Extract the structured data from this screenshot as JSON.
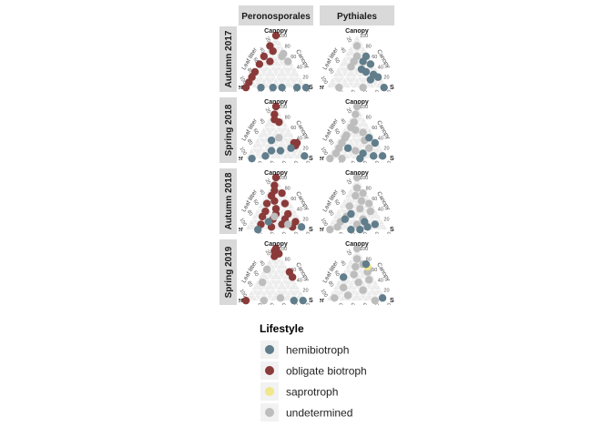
{
  "chart_data": {
    "type": "scatter",
    "subtype": "ternary",
    "facet_columns": [
      "Peronosporales",
      "Pythiales"
    ],
    "facet_rows": [
      "Autumn 2017",
      "Spring 2018",
      "Autumn 2018",
      "Spring 2019"
    ],
    "axes": {
      "top": "Canopy",
      "left": "Leaf litter",
      "right": "Soil",
      "left_side_label": "Leaf litter",
      "right_side_label": "Canopy",
      "bottom_label": "Soil",
      "ticks": [
        "20",
        "40",
        "60",
        "80",
        "100"
      ]
    },
    "grid": true,
    "legend": {
      "title": "Lifestyle",
      "position": "bottom",
      "entries": [
        {
          "label": "hemibiotroph",
          "color": "#607d8b"
        },
        {
          "label": "obligate biotroph",
          "color": "#8b3a3a"
        },
        {
          "label": "saprotroph",
          "color": "#f0e68c"
        },
        {
          "label": "undetermined",
          "color": "#bdbdbd"
        }
      ]
    },
    "panels": [
      {
        "row": "Autumn 2017",
        "col": "Peronosporales",
        "points": [
          {
            "c": 100,
            "l": 0,
            "s": 0,
            "k": "obligate biotroph"
          },
          {
            "c": 80,
            "l": 20,
            "s": 0,
            "k": "obligate biotroph"
          },
          {
            "c": 60,
            "l": 40,
            "s": 0,
            "k": "obligate biotroph"
          },
          {
            "c": 45,
            "l": 55,
            "s": 0,
            "k": "obligate biotroph"
          },
          {
            "c": 30,
            "l": 70,
            "s": 0,
            "k": "obligate biotroph"
          },
          {
            "c": 20,
            "l": 80,
            "s": 0,
            "k": "obligate biotroph"
          },
          {
            "c": 10,
            "l": 90,
            "s": 0,
            "k": "obligate biotroph"
          },
          {
            "c": 0,
            "l": 100,
            "s": 0,
            "k": "obligate biotroph"
          },
          {
            "c": 70,
            "l": 20,
            "s": 10,
            "k": "obligate biotroph"
          },
          {
            "c": 50,
            "l": 35,
            "s": 15,
            "k": "obligate biotroph"
          },
          {
            "c": 60,
            "l": 10,
            "s": 30,
            "k": "undetermined"
          },
          {
            "c": 65,
            "l": 5,
            "s": 30,
            "k": "undetermined"
          },
          {
            "c": 50,
            "l": 5,
            "s": 45,
            "k": "undetermined"
          },
          {
            "c": 0,
            "l": 75,
            "s": 25,
            "k": "hemibiotroph"
          },
          {
            "c": 0,
            "l": 55,
            "s": 45,
            "k": "hemibiotroph"
          },
          {
            "c": 0,
            "l": 40,
            "s": 60,
            "k": "hemibiotroph"
          },
          {
            "c": 0,
            "l": 15,
            "s": 85,
            "k": "hemibiotroph"
          },
          {
            "c": 0,
            "l": 0,
            "s": 100,
            "k": "hemibiotroph"
          }
        ]
      },
      {
        "row": "Autumn 2017",
        "col": "Pythiales",
        "points": [
          {
            "c": 80,
            "l": 10,
            "s": 10,
            "k": "undetermined"
          },
          {
            "c": 60,
            "l": 20,
            "s": 20,
            "k": "undetermined"
          },
          {
            "c": 50,
            "l": 30,
            "s": 20,
            "k": "undetermined"
          },
          {
            "c": 40,
            "l": 40,
            "s": 20,
            "k": "undetermined"
          },
          {
            "c": 60,
            "l": 5,
            "s": 35,
            "k": "hemibiotroph"
          },
          {
            "c": 50,
            "l": 15,
            "s": 35,
            "k": "hemibiotroph"
          },
          {
            "c": 45,
            "l": 5,
            "s": 50,
            "k": "hemibiotroph"
          },
          {
            "c": 35,
            "l": 25,
            "s": 40,
            "k": "hemibiotroph"
          },
          {
            "c": 30,
            "l": 20,
            "s": 50,
            "k": "hemibiotroph"
          },
          {
            "c": 25,
            "l": 10,
            "s": 65,
            "k": "hemibiotroph"
          },
          {
            "c": 20,
            "l": 5,
            "s": 75,
            "k": "hemibiotroph"
          },
          {
            "c": 15,
            "l": 20,
            "s": 65,
            "k": "hemibiotroph"
          },
          {
            "c": 0,
            "l": 80,
            "s": 20,
            "k": "undetermined"
          },
          {
            "c": 0,
            "l": 40,
            "s": 60,
            "k": "undetermined"
          },
          {
            "c": 0,
            "l": 5,
            "s": 95,
            "k": "hemibiotroph"
          }
        ]
      },
      {
        "row": "Spring 2018",
        "col": "Peronosporales",
        "points": [
          {
            "c": 100,
            "l": 0,
            "s": 0,
            "k": "obligate biotroph"
          },
          {
            "c": 85,
            "l": 10,
            "s": 5,
            "k": "obligate biotroph"
          },
          {
            "c": 75,
            "l": 15,
            "s": 10,
            "k": "obligate biotroph"
          },
          {
            "c": 70,
            "l": 10,
            "s": 20,
            "k": "obligate biotroph"
          },
          {
            "c": 30,
            "l": 5,
            "s": 65,
            "k": "obligate biotroph"
          },
          {
            "c": 25,
            "l": 5,
            "s": 70,
            "k": "obligate biotroph"
          },
          {
            "c": 30,
            "l": 0,
            "s": 70,
            "k": "obligate biotroph"
          },
          {
            "c": 35,
            "l": 40,
            "s": 25,
            "k": "hemibiotroph"
          },
          {
            "c": 15,
            "l": 50,
            "s": 35,
            "k": "hemibiotroph"
          },
          {
            "c": 15,
            "l": 35,
            "s": 50,
            "k": "hemibiotroph"
          },
          {
            "c": 20,
            "l": 15,
            "s": 65,
            "k": "hemibiotroph"
          },
          {
            "c": 5,
            "l": 0,
            "s": 95,
            "k": "hemibiotroph"
          },
          {
            "c": 0,
            "l": 90,
            "s": 10,
            "k": "hemibiotroph"
          },
          {
            "c": 40,
            "l": 25,
            "s": 35,
            "k": "undetermined"
          },
          {
            "c": 5,
            "l": 65,
            "s": 30,
            "k": "hemibiotroph"
          }
        ]
      },
      {
        "row": "Spring 2018",
        "col": "Pythiales",
        "points": [
          {
            "c": 100,
            "l": 0,
            "s": 0,
            "k": "undetermined"
          },
          {
            "c": 85,
            "l": 10,
            "s": 5,
            "k": "undetermined"
          },
          {
            "c": 70,
            "l": 20,
            "s": 10,
            "k": "undetermined"
          },
          {
            "c": 60,
            "l": 30,
            "s": 10,
            "k": "undetermined"
          },
          {
            "c": 55,
            "l": 25,
            "s": 20,
            "k": "undetermined"
          },
          {
            "c": 45,
            "l": 45,
            "s": 10,
            "k": "undetermined"
          },
          {
            "c": 40,
            "l": 50,
            "s": 10,
            "k": "undetermined"
          },
          {
            "c": 30,
            "l": 60,
            "s": 10,
            "k": "undetermined"
          },
          {
            "c": 20,
            "l": 70,
            "s": 10,
            "k": "undetermined"
          },
          {
            "c": 10,
            "l": 80,
            "s": 10,
            "k": "undetermined"
          },
          {
            "c": 50,
            "l": 15,
            "s": 35,
            "k": "undetermined"
          },
          {
            "c": 35,
            "l": 20,
            "s": 45,
            "k": "undetermined"
          },
          {
            "c": 20,
            "l": 20,
            "s": 60,
            "k": "undetermined"
          },
          {
            "c": 15,
            "l": 45,
            "s": 40,
            "k": "undetermined"
          },
          {
            "c": 40,
            "l": 10,
            "s": 50,
            "k": "hemibiotroph"
          },
          {
            "c": 30,
            "l": 5,
            "s": 65,
            "k": "hemibiotroph"
          },
          {
            "c": 20,
            "l": 55,
            "s": 25,
            "k": "hemibiotroph"
          },
          {
            "c": 10,
            "l": 35,
            "s": 55,
            "k": "hemibiotroph"
          },
          {
            "c": 5,
            "l": 20,
            "s": 75,
            "k": "hemibiotroph"
          },
          {
            "c": 0,
            "l": 45,
            "s": 55,
            "k": "hemibiotroph"
          },
          {
            "c": 5,
            "l": 5,
            "s": 90,
            "k": "hemibiotroph"
          },
          {
            "c": 0,
            "l": 75,
            "s": 25,
            "k": "undetermined"
          },
          {
            "c": 0,
            "l": 95,
            "s": 5,
            "k": "undetermined"
          }
        ]
      },
      {
        "row": "Autumn 2018",
        "col": "Peronosporales",
        "points": [
          {
            "c": 100,
            "l": 0,
            "s": 0,
            "k": "obligate biotroph"
          },
          {
            "c": 85,
            "l": 10,
            "s": 5,
            "k": "obligate biotroph"
          },
          {
            "c": 75,
            "l": 15,
            "s": 10,
            "k": "obligate biotroph"
          },
          {
            "c": 70,
            "l": 5,
            "s": 25,
            "k": "obligate biotroph"
          },
          {
            "c": 65,
            "l": 25,
            "s": 10,
            "k": "obligate biotroph"
          },
          {
            "c": 55,
            "l": 25,
            "s": 20,
            "k": "obligate biotroph"
          },
          {
            "c": 50,
            "l": 10,
            "s": 40,
            "k": "obligate biotroph"
          },
          {
            "c": 50,
            "l": 40,
            "s": 10,
            "k": "obligate biotroph"
          },
          {
            "c": 40,
            "l": 30,
            "s": 30,
            "k": "obligate biotroph"
          },
          {
            "c": 35,
            "l": 50,
            "s": 15,
            "k": "obligate biotroph"
          },
          {
            "c": 30,
            "l": 15,
            "s": 55,
            "k": "obligate biotroph"
          },
          {
            "c": 30,
            "l": 35,
            "s": 35,
            "k": "obligate biotroph"
          },
          {
            "c": 25,
            "l": 60,
            "s": 15,
            "k": "obligate biotroph"
          },
          {
            "c": 20,
            "l": 25,
            "s": 55,
            "k": "obligate biotroph"
          },
          {
            "c": 20,
            "l": 45,
            "s": 35,
            "k": "obligate biotroph"
          },
          {
            "c": 15,
            "l": 10,
            "s": 75,
            "k": "obligate biotroph"
          },
          {
            "c": 10,
            "l": 70,
            "s": 20,
            "k": "obligate biotroph"
          },
          {
            "c": 10,
            "l": 35,
            "s": 55,
            "k": "obligate biotroph"
          },
          {
            "c": 5,
            "l": 20,
            "s": 75,
            "k": "obligate biotroph"
          },
          {
            "c": 5,
            "l": 55,
            "s": 40,
            "k": "obligate biotroph"
          },
          {
            "c": 15,
            "l": 55,
            "s": 30,
            "k": "hemibiotroph"
          },
          {
            "c": 0,
            "l": 80,
            "s": 20,
            "k": "hemibiotroph"
          },
          {
            "c": 5,
            "l": 5,
            "s": 90,
            "k": "hemibiotroph"
          },
          {
            "c": 25,
            "l": 40,
            "s": 35,
            "k": "undetermined"
          },
          {
            "c": 10,
            "l": 25,
            "s": 65,
            "k": "undetermined"
          }
        ]
      },
      {
        "row": "Autumn 2018",
        "col": "Pythiales",
        "points": [
          {
            "c": 100,
            "l": 0,
            "s": 0,
            "k": "undetermined"
          },
          {
            "c": 80,
            "l": 10,
            "s": 10,
            "k": "undetermined"
          },
          {
            "c": 70,
            "l": 5,
            "s": 25,
            "k": "undetermined"
          },
          {
            "c": 65,
            "l": 20,
            "s": 15,
            "k": "undetermined"
          },
          {
            "c": 55,
            "l": 15,
            "s": 30,
            "k": "undetermined"
          },
          {
            "c": 50,
            "l": 5,
            "s": 45,
            "k": "undetermined"
          },
          {
            "c": 45,
            "l": 40,
            "s": 15,
            "k": "undetermined"
          },
          {
            "c": 40,
            "l": 25,
            "s": 35,
            "k": "undetermined"
          },
          {
            "c": 35,
            "l": 10,
            "s": 55,
            "k": "undetermined"
          },
          {
            "c": 25,
            "l": 55,
            "s": 20,
            "k": "undetermined"
          },
          {
            "c": 20,
            "l": 30,
            "s": 50,
            "k": "undetermined"
          },
          {
            "c": 15,
            "l": 70,
            "s": 15,
            "k": "undetermined"
          },
          {
            "c": 10,
            "l": 45,
            "s": 45,
            "k": "undetermined"
          },
          {
            "c": 5,
            "l": 80,
            "s": 15,
            "k": "undetermined"
          },
          {
            "c": 0,
            "l": 95,
            "s": 5,
            "k": "undetermined"
          },
          {
            "c": 30,
            "l": 45,
            "s": 25,
            "k": "hemibiotroph"
          },
          {
            "c": 20,
            "l": 60,
            "s": 20,
            "k": "hemibiotroph"
          },
          {
            "c": 15,
            "l": 30,
            "s": 55,
            "k": "hemibiotroph"
          },
          {
            "c": 10,
            "l": 15,
            "s": 75,
            "k": "hemibiotroph"
          },
          {
            "c": 5,
            "l": 30,
            "s": 65,
            "k": "hemibiotroph"
          },
          {
            "c": 0,
            "l": 60,
            "s": 40,
            "k": "hemibiotroph"
          },
          {
            "c": 0,
            "l": 45,
            "s": 55,
            "k": "hemibiotroph"
          }
        ]
      },
      {
        "row": "Spring 2019",
        "col": "Peronosporales",
        "points": [
          {
            "c": 100,
            "l": 0,
            "s": 0,
            "k": "obligate biotroph"
          },
          {
            "c": 95,
            "l": 5,
            "s": 0,
            "k": "obligate biotroph"
          },
          {
            "c": 90,
            "l": 0,
            "s": 10,
            "k": "obligate biotroph"
          },
          {
            "c": 85,
            "l": 10,
            "s": 5,
            "k": "obligate biotroph"
          },
          {
            "c": 55,
            "l": 0,
            "s": 45,
            "k": "obligate biotroph"
          },
          {
            "c": 45,
            "l": 0,
            "s": 55,
            "k": "obligate biotroph"
          },
          {
            "c": 0,
            "l": 100,
            "s": 0,
            "k": "obligate biotroph"
          },
          {
            "c": 60,
            "l": 35,
            "s": 5,
            "k": "undetermined"
          },
          {
            "c": 35,
            "l": 55,
            "s": 10,
            "k": "undetermined"
          },
          {
            "c": 5,
            "l": 40,
            "s": 55,
            "k": "undetermined"
          },
          {
            "c": 0,
            "l": 70,
            "s": 30,
            "k": "undetermined"
          },
          {
            "c": 0,
            "l": 20,
            "s": 80,
            "k": "hemibiotroph"
          },
          {
            "c": 0,
            "l": 5,
            "s": 95,
            "k": "hemibiotroph"
          }
        ]
      },
      {
        "row": "Spring 2019",
        "col": "Pythiales",
        "points": [
          {
            "c": 100,
            "l": 0,
            "s": 0,
            "k": "undetermined"
          },
          {
            "c": 80,
            "l": 10,
            "s": 10,
            "k": "undetermined"
          },
          {
            "c": 70,
            "l": 5,
            "s": 25,
            "k": "undetermined"
          },
          {
            "c": 65,
            "l": 20,
            "s": 15,
            "k": "undetermined"
          },
          {
            "c": 60,
            "l": 0,
            "s": 40,
            "k": "undetermined"
          },
          {
            "c": 55,
            "l": 5,
            "s": 40,
            "k": "undetermined"
          },
          {
            "c": 50,
            "l": 30,
            "s": 20,
            "k": "undetermined"
          },
          {
            "c": 40,
            "l": 10,
            "s": 50,
            "k": "undetermined"
          },
          {
            "c": 35,
            "l": 30,
            "s": 35,
            "k": "undetermined"
          },
          {
            "c": 25,
            "l": 60,
            "s": 15,
            "k": "undetermined"
          },
          {
            "c": 20,
            "l": 30,
            "s": 50,
            "k": "undetermined"
          },
          {
            "c": 10,
            "l": 60,
            "s": 30,
            "k": "undetermined"
          },
          {
            "c": 5,
            "l": 85,
            "s": 10,
            "k": "undetermined"
          },
          {
            "c": 0,
            "l": 20,
            "s": 80,
            "k": "undetermined"
          },
          {
            "c": 65,
            "l": 0,
            "s": 35,
            "k": "saprotroph"
          },
          {
            "c": 70,
            "l": 0,
            "s": 30,
            "k": "hemibiotroph"
          },
          {
            "c": 45,
            "l": 50,
            "s": 5,
            "k": "hemibiotroph"
          },
          {
            "c": 5,
            "l": 5,
            "s": 90,
            "k": "hemibiotroph"
          }
        ]
      }
    ]
  }
}
